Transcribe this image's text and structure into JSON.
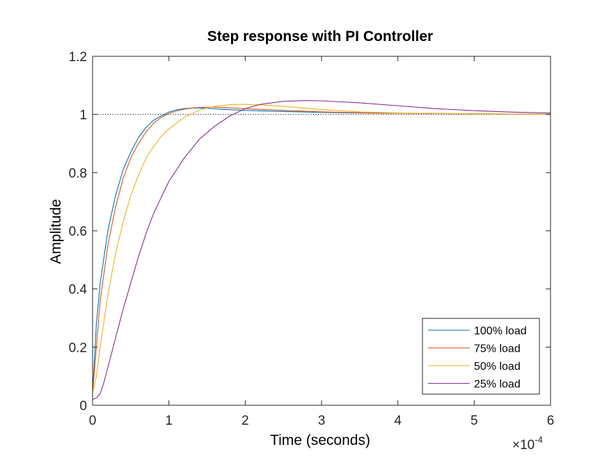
{
  "chart_data": {
    "type": "line",
    "title": "Step response with PI Controller",
    "xlabel": "Time (seconds)",
    "ylabel": "Amplitude",
    "x_multiplier": {
      "times": "×",
      "base": "10",
      "exponent": "-4"
    },
    "xlim": [
      0,
      6
    ],
    "ylim": [
      0,
      1.2
    ],
    "xticks": [
      0,
      1,
      2,
      3,
      4,
      5,
      6
    ],
    "xtick_labels": [
      "0",
      "1",
      "2",
      "3",
      "4",
      "5",
      "6"
    ],
    "yticks": [
      0,
      0.2,
      0.4,
      0.6,
      0.8,
      1,
      1.2
    ],
    "ytick_labels": [
      "0",
      "0.2",
      "0.4",
      "0.6",
      "0.8",
      "1",
      "1.2"
    ],
    "grid": false,
    "reference_line": {
      "y": 1,
      "style": "dotted"
    },
    "legend_position": "bottom-right",
    "series": [
      {
        "name": "100% load",
        "color": "#0072BD",
        "x": [
          0,
          0.05,
          0.1,
          0.2,
          0.3,
          0.4,
          0.5,
          0.6,
          0.7,
          0.8,
          0.9,
          1.0,
          1.1,
          1.2,
          1.3,
          1.4,
          1.5,
          1.7,
          2.0,
          2.5,
          3.0,
          3.5,
          4.0,
          5.0,
          6.0
        ],
        "y": [
          0.04,
          0.28,
          0.42,
          0.6,
          0.72,
          0.81,
          0.87,
          0.92,
          0.955,
          0.98,
          0.995,
          1.008,
          1.016,
          1.02,
          1.022,
          1.022,
          1.021,
          1.018,
          1.014,
          1.01,
          1.007,
          1.005,
          1.004,
          1.002,
          1.001
        ]
      },
      {
        "name": "75% load",
        "color": "#D95319",
        "x": [
          0,
          0.05,
          0.1,
          0.2,
          0.3,
          0.4,
          0.5,
          0.6,
          0.7,
          0.8,
          0.9,
          1.0,
          1.1,
          1.2,
          1.3,
          1.4,
          1.5,
          1.6,
          1.8,
          2.0,
          2.5,
          3.0,
          3.5,
          4.0,
          5.0,
          6.0
        ],
        "y": [
          0.04,
          0.2,
          0.36,
          0.55,
          0.68,
          0.78,
          0.85,
          0.9,
          0.94,
          0.97,
          0.99,
          1.003,
          1.012,
          1.018,
          1.022,
          1.024,
          1.025,
          1.025,
          1.023,
          1.02,
          1.014,
          1.009,
          1.006,
          1.004,
          1.002,
          1.001
        ]
      },
      {
        "name": "50% load",
        "color": "#EDB120",
        "x": [
          0,
          0.05,
          0.1,
          0.2,
          0.3,
          0.4,
          0.5,
          0.6,
          0.7,
          0.8,
          0.9,
          1.0,
          1.2,
          1.4,
          1.6,
          1.8,
          2.0,
          2.2,
          2.5,
          3.0,
          3.5,
          4.0,
          4.5,
          5.0,
          6.0
        ],
        "y": [
          0.04,
          0.1,
          0.2,
          0.38,
          0.52,
          0.63,
          0.72,
          0.79,
          0.85,
          0.89,
          0.925,
          0.95,
          0.99,
          1.015,
          1.028,
          1.034,
          1.035,
          1.033,
          1.028,
          1.017,
          1.009,
          1.005,
          1.003,
          1.002,
          1.001
        ]
      },
      {
        "name": "25% load",
        "color": "#7E2F8E",
        "x": [
          0,
          0.05,
          0.1,
          0.15,
          0.2,
          0.3,
          0.4,
          0.5,
          0.6,
          0.7,
          0.8,
          1.0,
          1.2,
          1.4,
          1.6,
          1.8,
          2.0,
          2.2,
          2.5,
          2.8,
          3.0,
          3.5,
          4.0,
          4.5,
          5.0,
          5.5,
          6.0
        ],
        "y": [
          0.02,
          0.025,
          0.04,
          0.08,
          0.13,
          0.23,
          0.33,
          0.42,
          0.51,
          0.59,
          0.66,
          0.77,
          0.85,
          0.915,
          0.96,
          0.995,
          1.02,
          1.035,
          1.045,
          1.048,
          1.047,
          1.04,
          1.03,
          1.02,
          1.013,
          1.008,
          1.005
        ]
      }
    ]
  }
}
